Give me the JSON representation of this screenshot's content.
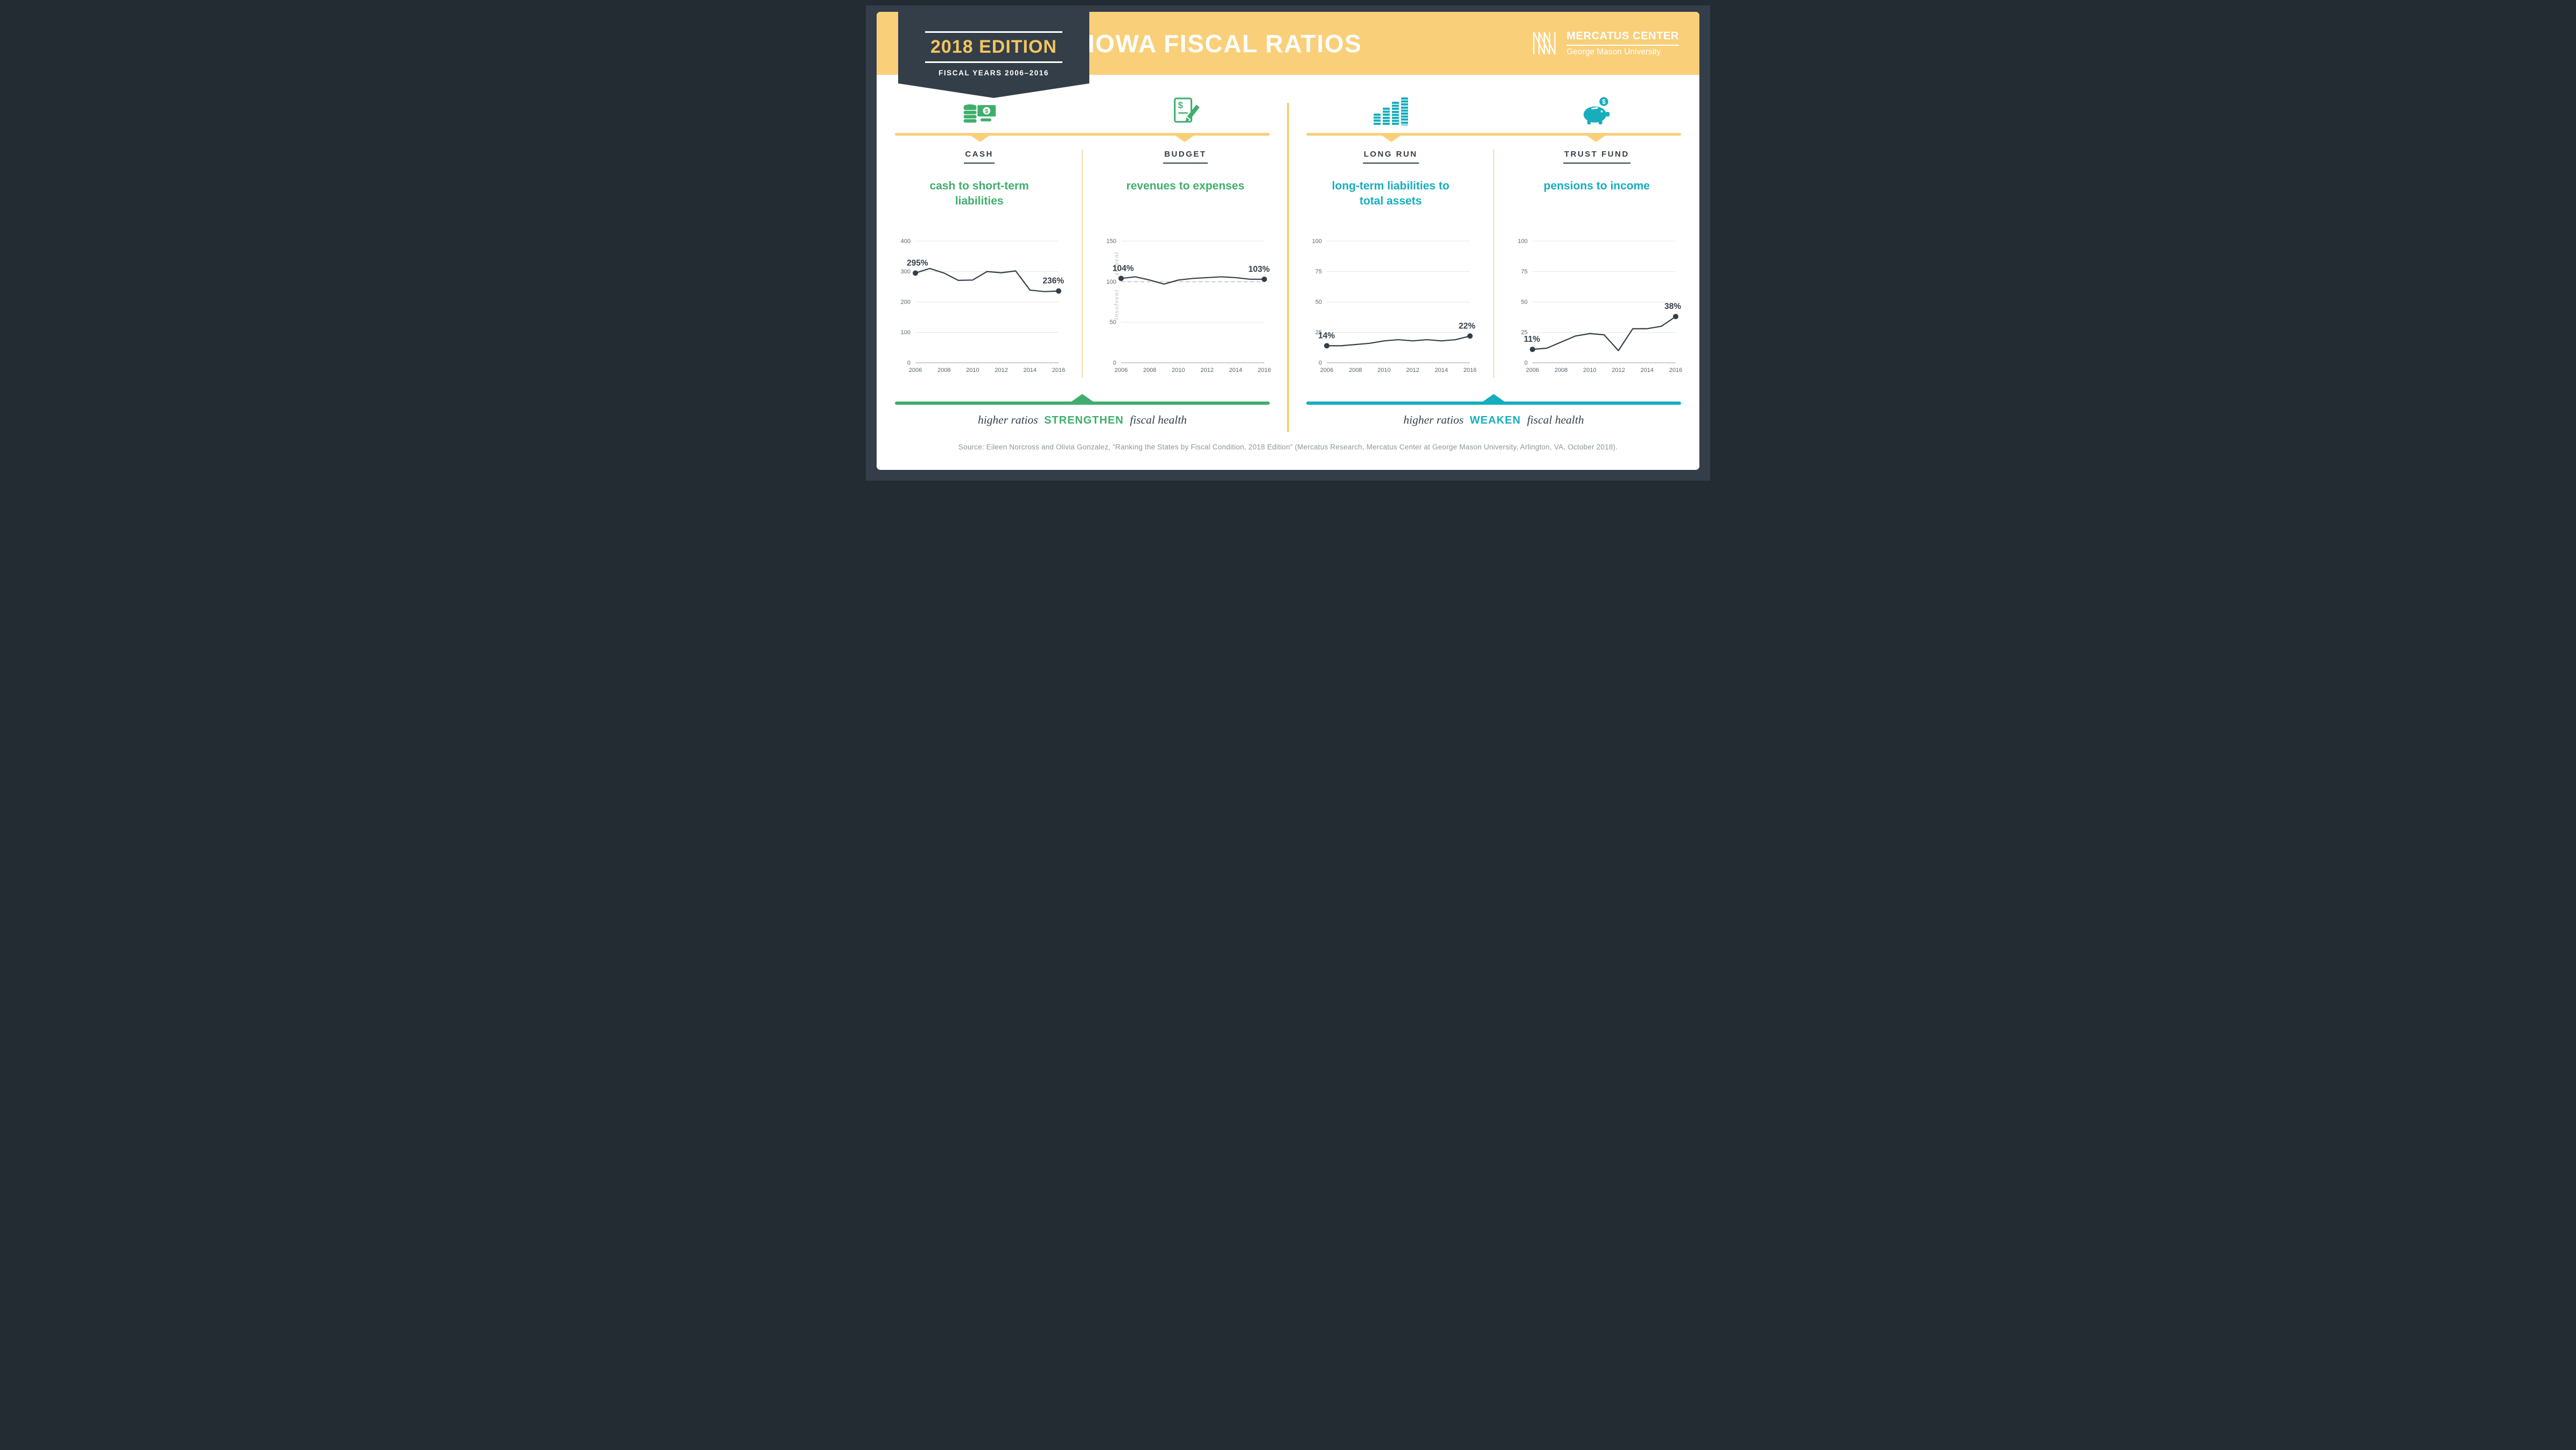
{
  "header": {
    "edition_badge": "2018 EDITION",
    "fiscal_years": "FISCAL YEARS 2006–2016",
    "title": "IOWA FISCAL RATIOS",
    "logo": {
      "name": "MERCATUS CENTER",
      "subname": "George Mason University"
    }
  },
  "footer_left": {
    "prefix": "higher ratios",
    "keyword": "STRENGTHEN",
    "suffix": "fiscal health"
  },
  "footer_right": {
    "prefix": "higher ratios",
    "keyword": "WEAKEN",
    "suffix": "fiscal health"
  },
  "source": "Source: Eileen Norcross and Olivia Gonzalez, “Ranking the States by Fiscal Condition, 2018 Edition” (Mercatus Research, Mercatus Center at George Mason University, Arlington, VA, October 2018).",
  "colors": {
    "dark": "#333e48",
    "gold": "#f9cf79",
    "gold_text": "#f5c45f",
    "green": "#3fae6c",
    "teal": "#16aebd",
    "pale_divider": "#f0dca8",
    "grid": "#e4e6e8",
    "axis": "#9aa1a8",
    "tick": "#5c646d",
    "source_text": "#8e959d"
  },
  "chart_data": [
    {
      "type": "line",
      "panel": "CASH",
      "icon": "cash-icon",
      "title": "cash to short-term liabilities",
      "accent": "#3fae6c",
      "x": [
        2006,
        2007,
        2008,
        2009,
        2010,
        2011,
        2012,
        2013,
        2014,
        2015,
        2016
      ],
      "xticks": [
        2006,
        2008,
        2010,
        2012,
        2014,
        2016
      ],
      "values": [
        295,
        310,
        295,
        271,
        272,
        300,
        296,
        302,
        239,
        234,
        236
      ],
      "ylim": [
        0,
        400
      ],
      "yticks": [
        0,
        100,
        200,
        300,
        400
      ],
      "first_label": "295%",
      "last_label": "236%",
      "solvency_line": null
    },
    {
      "type": "line",
      "panel": "BUDGET",
      "icon": "budget-icon",
      "title": "revenues to expenses",
      "accent": "#3fae6c",
      "x": [
        2006,
        2007,
        2008,
        2009,
        2010,
        2011,
        2012,
        2013,
        2014,
        2015,
        2016
      ],
      "xticks": [
        2006,
        2008,
        2010,
        2012,
        2014,
        2016
      ],
      "values": [
        104,
        106,
        102,
        97,
        102,
        104,
        105,
        106,
        105,
        103,
        103
      ],
      "ylim": [
        0,
        150
      ],
      "yticks": [
        0,
        50,
        100,
        150
      ],
      "first_label": "104%",
      "last_label": "103%",
      "solvency_line": {
        "value": 100,
        "above_label": "solvent",
        "below_label": "insolvent"
      }
    },
    {
      "type": "line",
      "panel": "LONG RUN",
      "icon": "long-run-icon",
      "title": "long-term liabilities to total assets",
      "accent": "#16aebd",
      "x": [
        2006,
        2007,
        2008,
        2009,
        2010,
        2011,
        2012,
        2013,
        2014,
        2015,
        2016
      ],
      "xticks": [
        2006,
        2008,
        2010,
        2012,
        2014,
        2016
      ],
      "values": [
        14,
        14,
        15,
        16,
        18,
        19,
        18,
        19,
        18,
        19,
        22
      ],
      "ylim": [
        0,
        100
      ],
      "yticks": [
        0,
        25,
        50,
        75,
        100
      ],
      "first_label": "14%",
      "last_label": "22%",
      "solvency_line": null
    },
    {
      "type": "line",
      "panel": "TRUST FUND",
      "icon": "trust-fund-icon",
      "title": "pensions to income",
      "accent": "#16aebd",
      "x": [
        2006,
        2007,
        2008,
        2009,
        2010,
        2011,
        2012,
        2013,
        2014,
        2015,
        2016
      ],
      "xticks": [
        2006,
        2008,
        2010,
        2012,
        2014,
        2016
      ],
      "values": [
        11,
        12,
        17,
        22,
        24,
        23,
        10,
        28,
        28,
        30,
        38
      ],
      "ylim": [
        0,
        100
      ],
      "yticks": [
        0,
        25,
        50,
        75,
        100
      ],
      "first_label": "11%",
      "last_label": "38%",
      "solvency_line": null
    }
  ]
}
